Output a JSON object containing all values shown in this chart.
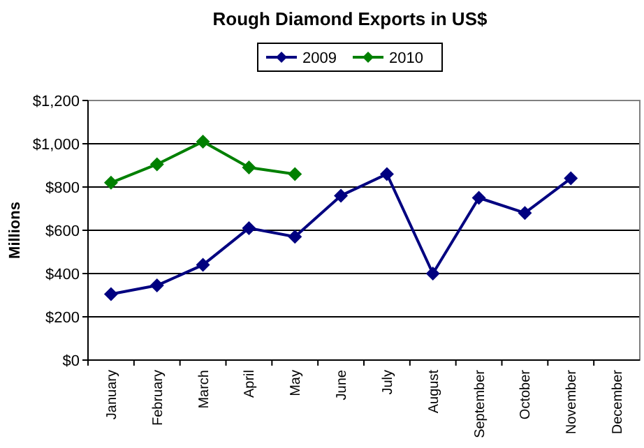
{
  "chart_data": {
    "type": "line",
    "title": "Rough Diamond Exports in US$",
    "ylabel": "Millions",
    "categories": [
      "January",
      "February",
      "March",
      "April",
      "May",
      "June",
      "July",
      "August",
      "September",
      "October",
      "November",
      "December"
    ],
    "series": [
      {
        "name": "2009",
        "color": "#000080",
        "values": [
          305,
          345,
          440,
          610,
          570,
          760,
          860,
          400,
          750,
          680,
          840,
          null
        ]
      },
      {
        "name": "2010",
        "color": "#008000",
        "values": [
          820,
          905,
          1010,
          890,
          860,
          null,
          null,
          null,
          null,
          null,
          null,
          null
        ]
      }
    ],
    "ylim": [
      0,
      1200
    ],
    "yticks": [
      {
        "value": 0,
        "label": "$0"
      },
      {
        "value": 200,
        "label": "$200"
      },
      {
        "value": 400,
        "label": "$400"
      },
      {
        "value": 600,
        "label": "$600"
      },
      {
        "value": 800,
        "label": "$800"
      },
      {
        "value": 1000,
        "label": "$1,000"
      },
      {
        "value": 1200,
        "label": "$1,200"
      }
    ],
    "grid": "y",
    "legend": "top",
    "marker": "diamond",
    "line_style": "solid"
  }
}
